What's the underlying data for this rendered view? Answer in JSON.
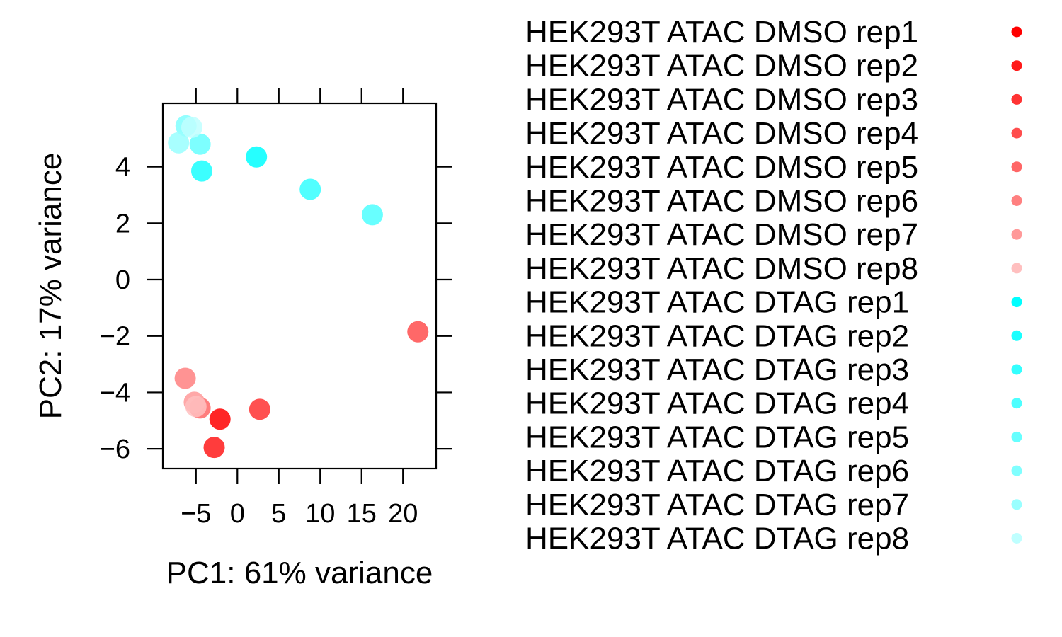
{
  "chart_data": {
    "type": "scatter",
    "xlabel": "PC1: 61% variance",
    "ylabel": "PC2: 17% variance",
    "xlim": [
      -9,
      24
    ],
    "ylim": [
      -6.7,
      6.25
    ],
    "xticks": [
      -5,
      0,
      5,
      10,
      15,
      20
    ],
    "yticks": [
      -6,
      -4,
      -2,
      0,
      2,
      4
    ],
    "xtick_labels": [
      "−5",
      "0",
      "5",
      "10",
      "15",
      "20"
    ],
    "ytick_labels": [
      "−6",
      "−4",
      "−2",
      "0",
      "2",
      "4"
    ],
    "legend_position": "right",
    "series": [
      {
        "name": "HEK293T ATAC DMSO rep1",
        "color": "#ff0000",
        "x": -2.1,
        "y": -4.95
      },
      {
        "name": "HEK293T ATAC DMSO rep2",
        "color": "#ff1a1a",
        "x": -2.8,
        "y": -5.95
      },
      {
        "name": "HEK293T ATAC DMSO rep3",
        "color": "#ff3333",
        "x": 2.7,
        "y": -4.6
      },
      {
        "name": "HEK293T ATAC DMSO rep4",
        "color": "#ff4d4d",
        "x": 21.8,
        "y": -1.85
      },
      {
        "name": "HEK293T ATAC DMSO rep5",
        "color": "#ff6666",
        "x": -4.5,
        "y": -4.55
      },
      {
        "name": "HEK293T ATAC DMSO rep6",
        "color": "#ff8080",
        "x": -6.3,
        "y": -3.5
      },
      {
        "name": "HEK293T ATAC DMSO rep7",
        "color": "#ff9999",
        "x": -5.2,
        "y": -4.35
      },
      {
        "name": "HEK293T ATAC DMSO rep8",
        "color": "#ffbfbf",
        "x": -5.0,
        "y": -4.5
      },
      {
        "name": "HEK293T ATAC DTAG rep1",
        "color": "#00ffff",
        "x": 2.3,
        "y": 4.35
      },
      {
        "name": "HEK293T ATAC DTAG rep2",
        "color": "#1affff",
        "x": -4.3,
        "y": 3.85
      },
      {
        "name": "HEK293T ATAC DTAG rep3",
        "color": "#33ffff",
        "x": 8.8,
        "y": 3.2
      },
      {
        "name": "HEK293T ATAC DTAG rep4",
        "color": "#4dffff",
        "x": 16.3,
        "y": 2.3
      },
      {
        "name": "HEK293T ATAC DTAG rep5",
        "color": "#66ffff",
        "x": -4.5,
        "y": 4.8
      },
      {
        "name": "HEK293T ATAC DTAG rep6",
        "color": "#80ffff",
        "x": -6.2,
        "y": 5.45
      },
      {
        "name": "HEK293T ATAC DTAG rep7",
        "color": "#99ffff",
        "x": -7.1,
        "y": 4.85
      },
      {
        "name": "HEK293T ATAC DTAG rep8",
        "color": "#bfffff",
        "x": -5.5,
        "y": 5.4
      }
    ]
  }
}
